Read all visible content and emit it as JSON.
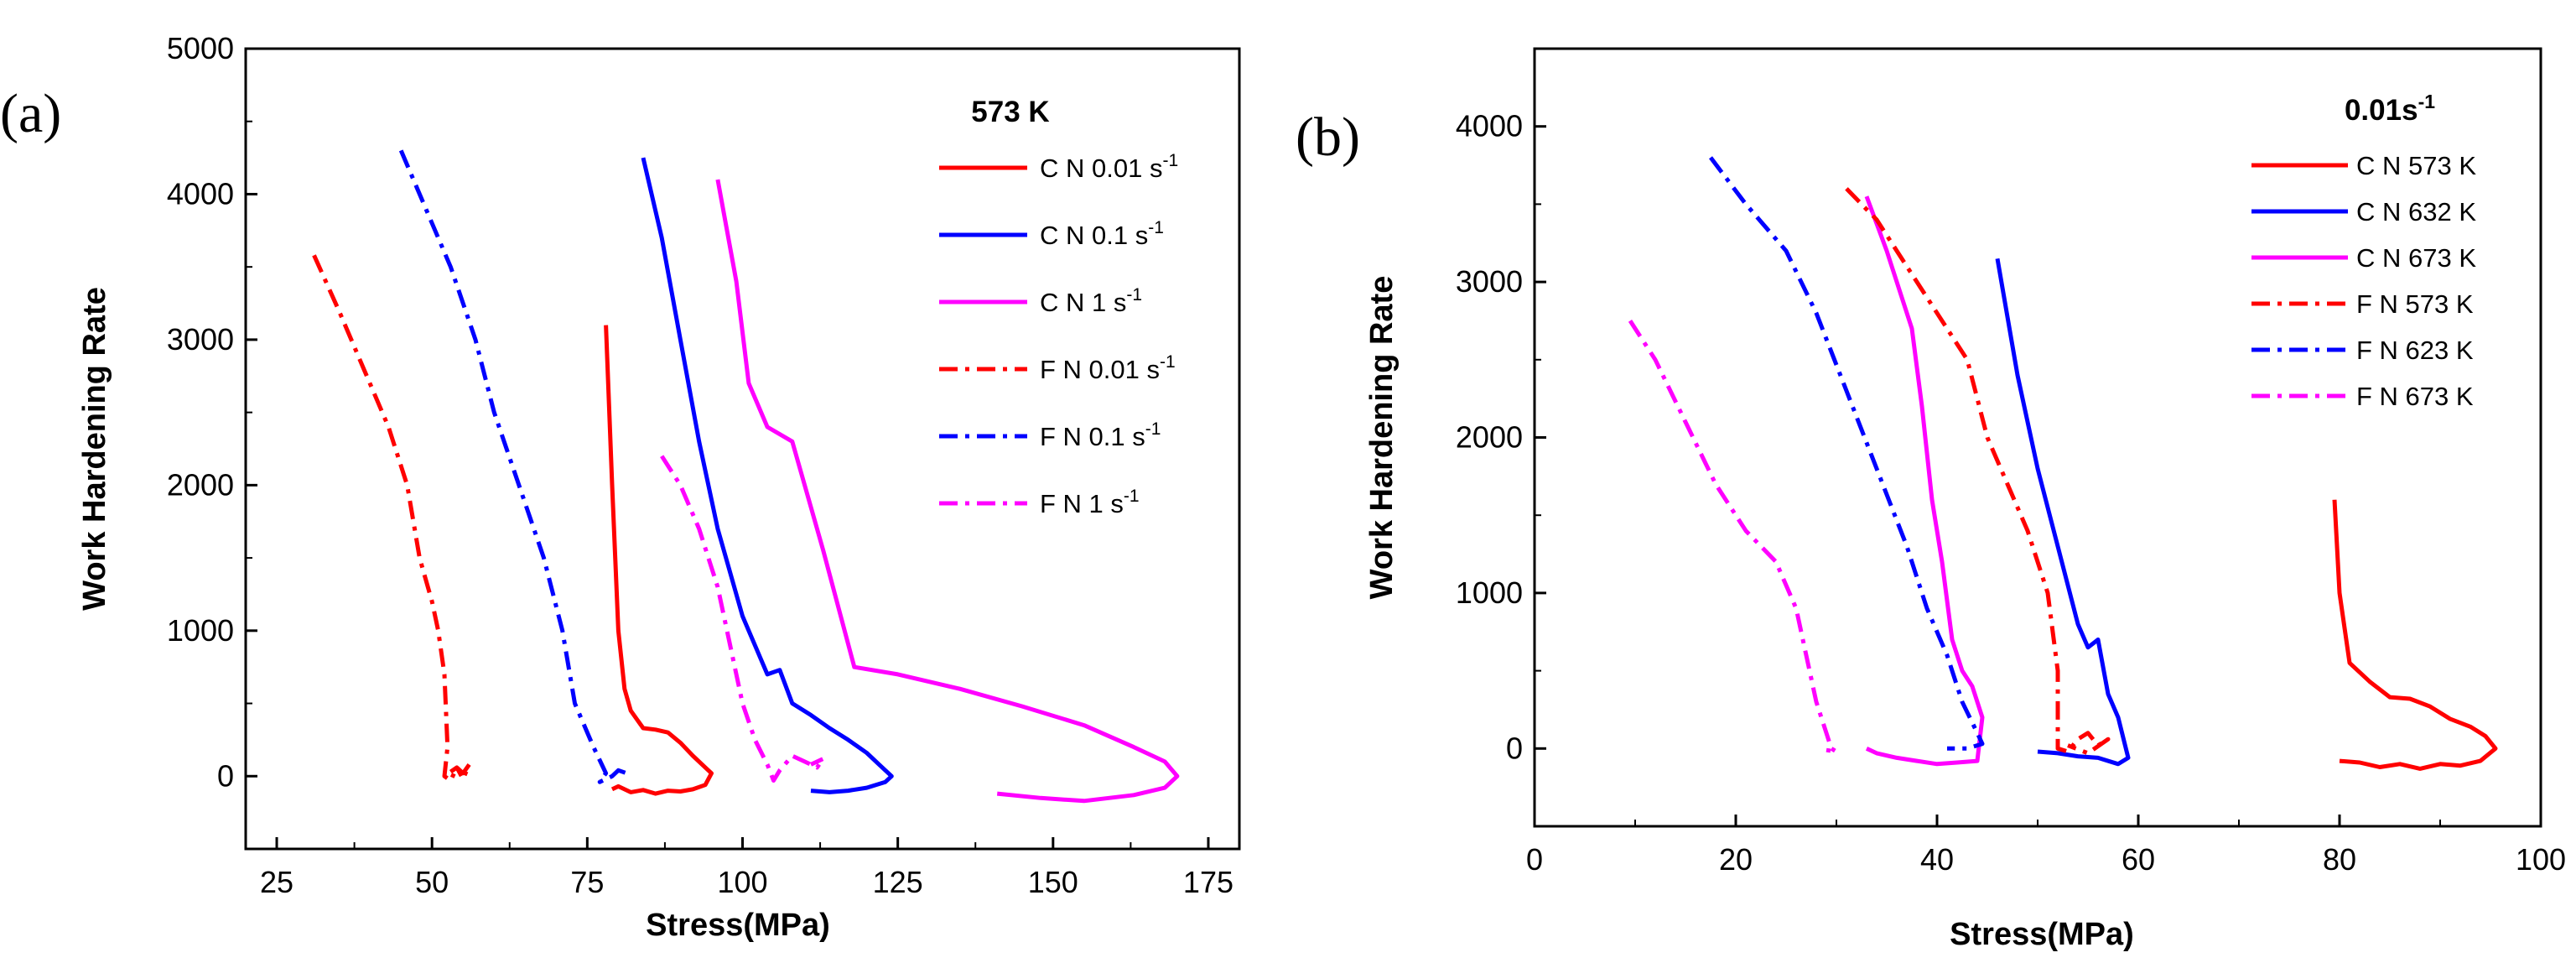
{
  "chart_data": [
    {
      "type": "line",
      "panel_label": "(a)",
      "xlabel": "Stress(MPa)",
      "ylabel": "Work Hardening  Rate",
      "xlim": [
        20,
        180
      ],
      "ylim": [
        -500,
        5000
      ],
      "xticks": [
        "25",
        "50",
        "75",
        "100",
        "125",
        "150",
        "175"
      ],
      "yticks": [
        "0",
        "1000",
        "2000",
        "3000",
        "4000",
        "5000"
      ],
      "legend_title": "573 K",
      "legend_position": "top-right",
      "series": [
        {
          "name": "C N 0.01 s",
          "exp": "-1",
          "color": "#ff0000",
          "dash": "solid",
          "points": [
            [
              78,
              3100
            ],
            [
              79,
              2000
            ],
            [
              80,
              1000
            ],
            [
              81,
              600
            ],
            [
              82,
              450
            ],
            [
              84,
              330
            ],
            [
              86,
              320
            ],
            [
              88,
              300
            ],
            [
              90,
              230
            ],
            [
              92,
              140
            ],
            [
              94,
              60
            ],
            [
              95,
              20
            ],
            [
              94,
              -60
            ],
            [
              92,
              -90
            ],
            [
              90,
              -105
            ],
            [
              88,
              -100
            ],
            [
              86,
              -120
            ],
            [
              84,
              -95
            ],
            [
              82,
              -110
            ],
            [
              80,
              -70
            ],
            [
              79,
              -90
            ]
          ]
        },
        {
          "name": "C N 0.1 s",
          "exp": "-1",
          "color": "#0000ff",
          "dash": "solid",
          "points": [
            [
              84,
              4250
            ],
            [
              87,
              3700
            ],
            [
              90,
              3000
            ],
            [
              93,
              2300
            ],
            [
              96,
              1700
            ],
            [
              98,
              1400
            ],
            [
              100,
              1100
            ],
            [
              102,
              900
            ],
            [
              104,
              700
            ],
            [
              106,
              730
            ],
            [
              108,
              500
            ],
            [
              111,
              420
            ],
            [
              114,
              330
            ],
            [
              117,
              250
            ],
            [
              120,
              160
            ],
            [
              122,
              80
            ],
            [
              124,
              0
            ],
            [
              123,
              -40
            ],
            [
              120,
              -80
            ],
            [
              117,
              -100
            ],
            [
              114,
              -110
            ],
            [
              111,
              -100
            ]
          ]
        },
        {
          "name": "C N 1 s",
          "exp": "-1",
          "color": "#ff00ff",
          "dash": "solid",
          "points": [
            [
              96,
              4100
            ],
            [
              99,
              3400
            ],
            [
              101,
              2700
            ],
            [
              104,
              2400
            ],
            [
              108,
              2300
            ],
            [
              113,
              1550
            ],
            [
              118,
              750
            ],
            [
              125,
              700
            ],
            [
              135,
              600
            ],
            [
              145,
              480
            ],
            [
              155,
              350
            ],
            [
              163,
              200
            ],
            [
              168,
              100
            ],
            [
              170,
              0
            ],
            [
              168,
              -80
            ],
            [
              163,
              -130
            ],
            [
              155,
              -170
            ],
            [
              148,
              -150
            ],
            [
              141,
              -120
            ]
          ]
        },
        {
          "name": "F N 0.01 s",
          "exp": "-1",
          "color": "#ff0000",
          "dash": "dashdot",
          "points": [
            [
              31,
              3580
            ],
            [
              35,
              3200
            ],
            [
              39,
              2800
            ],
            [
              43,
              2400
            ],
            [
              46,
              2000
            ],
            [
              48,
              1500
            ],
            [
              50,
              1200
            ],
            [
              51,
              1000
            ],
            [
              52,
              700
            ],
            [
              52.5,
              200
            ],
            [
              52,
              0
            ],
            [
              53,
              -30
            ],
            [
              54,
              60
            ],
            [
              55,
              20
            ],
            [
              56,
              80
            ],
            [
              55,
              -20
            ],
            [
              54,
              60
            ],
            [
              53,
              30
            ]
          ]
        },
        {
          "name": "F N 0.1 s",
          "exp": "-1",
          "color": "#0000ff",
          "dash": "dashdot",
          "points": [
            [
              45,
              4300
            ],
            [
              49,
              3900
            ],
            [
              53,
              3500
            ],
            [
              57,
              3000
            ],
            [
              60,
              2500
            ],
            [
              64,
              2000
            ],
            [
              68,
              1500
            ],
            [
              71,
              1000
            ],
            [
              73,
              500
            ],
            [
              76,
              200
            ],
            [
              78,
              20
            ],
            [
              77,
              -40
            ],
            [
              79,
              0
            ],
            [
              80,
              40
            ],
            [
              82,
              10
            ]
          ]
        },
        {
          "name": "F N 1 s",
          "exp": "-1",
          "color": "#ff00ff",
          "dash": "dashdot",
          "points": [
            [
              87,
              2200
            ],
            [
              90,
              2000
            ],
            [
              93,
              1700
            ],
            [
              96,
              1300
            ],
            [
              98,
              900
            ],
            [
              100,
              500
            ],
            [
              102,
              250
            ],
            [
              104,
              80
            ],
            [
              105,
              -30
            ],
            [
              106,
              40
            ],
            [
              108,
              140
            ],
            [
              110,
              100
            ],
            [
              112,
              60
            ],
            [
              113,
              120
            ],
            [
              111,
              80
            ]
          ]
        }
      ]
    },
    {
      "type": "line",
      "panel_label": "(b)",
      "xlabel": "Stress(MPa)",
      "ylabel": "Work Hardening  Rate",
      "xlim": [
        0,
        100
      ],
      "ylim": [
        -500,
        4500
      ],
      "xticks": [
        "0",
        "20",
        "40",
        "60",
        "80",
        "100"
      ],
      "yticks": [
        "0",
        "1000",
        "2000",
        "3000",
        "4000"
      ],
      "legend_title": "0.01s",
      "legend_title_exp": "-1",
      "legend_position": "top-right",
      "series": [
        {
          "name": "C N 573 K",
          "color": "#ff0000",
          "dash": "solid",
          "points": [
            [
              79.5,
              1600
            ],
            [
              80,
              1000
            ],
            [
              81,
              550
            ],
            [
              83,
              430
            ],
            [
              85,
              330
            ],
            [
              87,
              320
            ],
            [
              89,
              270
            ],
            [
              91,
              190
            ],
            [
              93,
              140
            ],
            [
              94.5,
              80
            ],
            [
              95.5,
              0
            ],
            [
              94,
              -80
            ],
            [
              92,
              -110
            ],
            [
              90,
              -100
            ],
            [
              88,
              -130
            ],
            [
              86,
              -100
            ],
            [
              84,
              -120
            ],
            [
              82,
              -90
            ],
            [
              80,
              -80
            ]
          ]
        },
        {
          "name": "C N 632 K",
          "color": "#0000ff",
          "dash": "solid",
          "points": [
            [
              46,
              3150
            ],
            [
              48,
              2400
            ],
            [
              50,
              1800
            ],
            [
              52,
              1300
            ],
            [
              54,
              800
            ],
            [
              55,
              650
            ],
            [
              56,
              700
            ],
            [
              57,
              350
            ],
            [
              58,
              200
            ],
            [
              59,
              -60
            ],
            [
              58,
              -100
            ],
            [
              56,
              -60
            ],
            [
              54,
              -50
            ],
            [
              52,
              -30
            ],
            [
              50,
              -20
            ]
          ]
        },
        {
          "name": "C N 673 K",
          "color": "#ff00ff",
          "dash": "solid",
          "points": [
            [
              33,
              3550
            ],
            [
              35,
              3200
            ],
            [
              37.5,
              2700
            ],
            [
              38.5,
              2200
            ],
            [
              39.5,
              1600
            ],
            [
              40.5,
              1200
            ],
            [
              41.5,
              700
            ],
            [
              42.5,
              500
            ],
            [
              43.5,
              400
            ],
            [
              44.5,
              200
            ],
            [
              44,
              -80
            ],
            [
              42,
              -90
            ],
            [
              40,
              -100
            ],
            [
              38,
              -80
            ],
            [
              36,
              -60
            ],
            [
              34,
              -30
            ],
            [
              33,
              0
            ]
          ]
        },
        {
          "name": "F N 573 K",
          "color": "#ff0000",
          "dash": "dashdot",
          "points": [
            [
              31,
              3600
            ],
            [
              34,
              3400
            ],
            [
              37,
              3100
            ],
            [
              40,
              2800
            ],
            [
              43,
              2500
            ],
            [
              45,
              2000
            ],
            [
              47,
              1700
            ],
            [
              49,
              1400
            ],
            [
              51,
              1000
            ],
            [
              52,
              500
            ],
            [
              52,
              0
            ],
            [
              53,
              -20
            ],
            [
              54,
              60
            ],
            [
              55,
              100
            ],
            [
              56,
              20
            ],
            [
              57,
              60
            ],
            [
              55,
              -30
            ],
            [
              53,
              20
            ]
          ]
        },
        {
          "name": "F N 623 K",
          "color": "#0000ff",
          "dash": "dashdot",
          "points": [
            [
              17.5,
              3800
            ],
            [
              21,
              3500
            ],
            [
              25,
              3200
            ],
            [
              28,
              2800
            ],
            [
              31,
              2300
            ],
            [
              34,
              1800
            ],
            [
              37,
              1300
            ],
            [
              39,
              900
            ],
            [
              41,
              600
            ],
            [
              42.5,
              300
            ],
            [
              44,
              100
            ],
            [
              44.5,
              30
            ],
            [
              43,
              0
            ],
            [
              41,
              0
            ]
          ]
        },
        {
          "name": "F N 673 K",
          "color": "#ff00ff",
          "dash": "dashdot",
          "points": [
            [
              9.5,
              2750
            ],
            [
              12,
              2500
            ],
            [
              15,
              2100
            ],
            [
              18,
              1700
            ],
            [
              21,
              1400
            ],
            [
              24,
              1200
            ],
            [
              26,
              900
            ],
            [
              27,
              600
            ],
            [
              28,
              300
            ],
            [
              29.5,
              0
            ],
            [
              30,
              -20
            ],
            [
              29,
              -10
            ]
          ]
        }
      ]
    }
  ]
}
